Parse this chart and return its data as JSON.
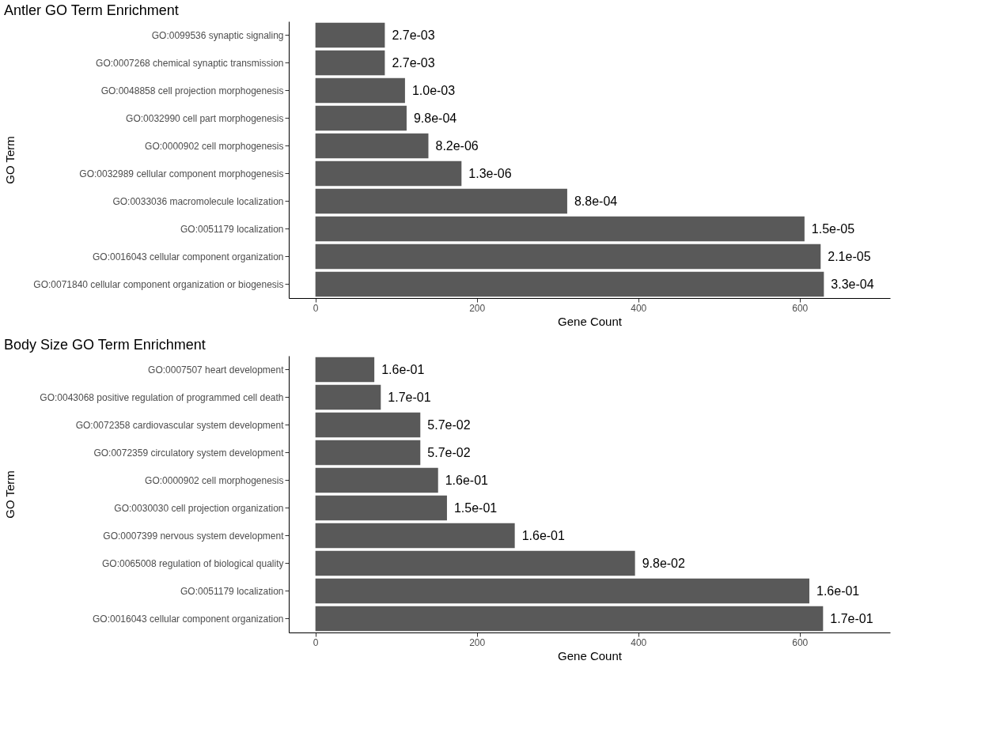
{
  "chart_data": [
    {
      "type": "bar",
      "orientation": "horizontal",
      "title": "Antler GO Term Enrichment",
      "xlabel": "Gene Count",
      "ylabel": "GO Term",
      "color": "#595959",
      "grid": false,
      "xlim": [
        -33,
        712
      ],
      "xticks": [
        0,
        200,
        400,
        600
      ],
      "categories": [
        "GO:0099536 synaptic signaling",
        "GO:0007268 chemical synaptic transmission",
        "GO:0048858 cell projection morphogenesis",
        "GO:0032990 cell part morphogenesis",
        "GO:0000902 cell morphogenesis",
        "GO:0032989 cellular component morphogenesis",
        "GO:0033036 macromolecule localization",
        "GO:0051179 localization",
        "GO:0016043 cellular component organization",
        "GO:0071840 cellular component organization or biogenesis"
      ],
      "values": [
        86,
        86,
        111,
        113,
        140,
        181,
        312,
        606,
        626,
        630
      ],
      "annotations": [
        {
          "text": "2.7e-03",
          "x": 86,
          "y": "GO:0099536 synaptic signaling"
        },
        {
          "text": "2.7e-03",
          "x": 86,
          "y": "GO:0007268 chemical synaptic transmission"
        },
        {
          "text": "1.0e-03",
          "x": 111,
          "y": "GO:0048858 cell projection morphogenesis"
        },
        {
          "text": "9.8e-04",
          "x": 113,
          "y": "GO:0032990 cell part morphogenesis"
        },
        {
          "text": "8.2e-06",
          "x": 140,
          "y": "GO:0000902 cell morphogenesis"
        },
        {
          "text": "1.3e-06",
          "x": 181,
          "y": "GO:0032989 cellular component morphogenesis"
        },
        {
          "text": "8.8e-04",
          "x": 312,
          "y": "GO:0033036 macromolecule localization"
        },
        {
          "text": "1.5e-05",
          "x": 606,
          "y": "GO:0051179 localization"
        },
        {
          "text": "2.1e-05",
          "x": 626,
          "y": "GO:0016043 cellular component organization"
        },
        {
          "text": "3.3e-04",
          "x": 630,
          "y": "GO:0071840 cellular component organization or biogenesis"
        }
      ]
    },
    {
      "type": "bar",
      "orientation": "horizontal",
      "title": "Body Size GO Term Enrichment",
      "xlabel": "Gene Count",
      "ylabel": "GO Term",
      "color": "#595959",
      "grid": false,
      "xlim": [
        -33,
        712
      ],
      "xticks": [
        0,
        200,
        400,
        600
      ],
      "categories": [
        "GO:0007507 heart development",
        "GO:0043068 positive regulation of programmed cell death",
        "GO:0072358 cardiovascular system development",
        "GO:0072359 circulatory system development",
        "GO:0000902 cell morphogenesis",
        "GO:0030030 cell projection organization",
        "GO:0007399 nervous system development",
        "GO:0065008 regulation of biological quality",
        "GO:0051179 localization",
        "GO:0016043 cellular component organization"
      ],
      "values": [
        73,
        81,
        130,
        130,
        152,
        163,
        247,
        396,
        612,
        629
      ],
      "annotations": [
        {
          "text": "1.6e-01",
          "x": 73,
          "y": "GO:0007507 heart development"
        },
        {
          "text": "1.7e-01",
          "x": 81,
          "y": "GO:0043068 positive regulation of programmed cell death"
        },
        {
          "text": "5.7e-02",
          "x": 130,
          "y": "GO:0072358 cardiovascular system development"
        },
        {
          "text": "5.7e-02",
          "x": 130,
          "y": "GO:0072359 circulatory system development"
        },
        {
          "text": "1.6e-01",
          "x": 152,
          "y": "GO:0000902 cell morphogenesis"
        },
        {
          "text": "1.5e-01",
          "x": 163,
          "y": "GO:0030030 cell projection organization"
        },
        {
          "text": "1.6e-01",
          "x": 247,
          "y": "GO:0007399 nervous system development"
        },
        {
          "text": "9.8e-02",
          "x": 396,
          "y": "GO:0065008 regulation of biological quality"
        },
        {
          "text": "1.6e-01",
          "x": 612,
          "y": "GO:0051179 localization"
        },
        {
          "text": "1.7e-01",
          "x": 629,
          "y": "GO:0016043 cellular component organization"
        }
      ]
    }
  ]
}
